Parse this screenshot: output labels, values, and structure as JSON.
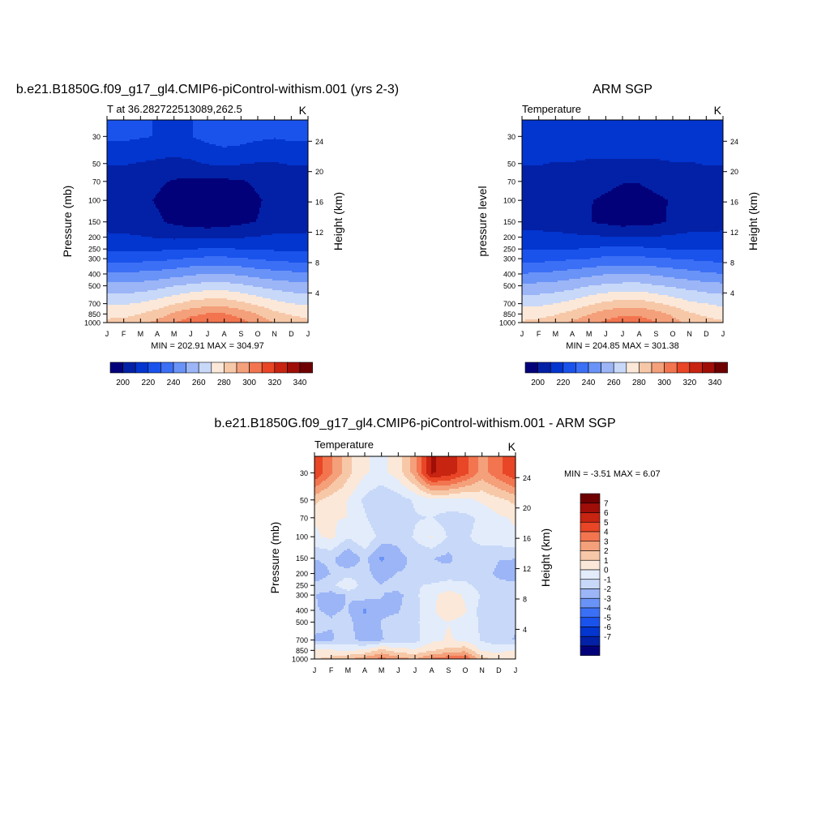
{
  "units_label": "K",
  "pressure_ticks": [
    30,
    50,
    70,
    100,
    150,
    200,
    250,
    300,
    400,
    500,
    700,
    850,
    1000
  ],
  "height_ticks": [
    4,
    8,
    12,
    16,
    20,
    24
  ],
  "months": [
    "J",
    "F",
    "M",
    "A",
    "M",
    "J",
    "J",
    "A",
    "S",
    "O",
    "N",
    "D",
    "J"
  ],
  "temp_colorbar": {
    "colors": [
      "#03017a",
      "#0321a6",
      "#0335cf",
      "#1a52ec",
      "#3b6ff5",
      "#6a93f7",
      "#9bb5f7",
      "#c8d8f8",
      "#fbe8d8",
      "#f7c8a8",
      "#f4a07a",
      "#f27550",
      "#e84626",
      "#c82412",
      "#a00e08",
      "#6e0000"
    ],
    "labels": [
      "200",
      "220",
      "240",
      "260",
      "280",
      "300",
      "320",
      "340"
    ]
  },
  "diff_colorbar": {
    "colors": [
      "#03017a",
      "#0321a6",
      "#0335cf",
      "#1a52ec",
      "#3b6ff5",
      "#6a93f7",
      "#9bb5f7",
      "#c8d8f8",
      "#e2ecfb",
      "#fbe8d8",
      "#f7c8a8",
      "#f4a07a",
      "#f27550",
      "#e84626",
      "#c82412",
      "#a00e08",
      "#6e0000"
    ],
    "labels": [
      "7",
      "6",
      "5",
      "4",
      "3",
      "2",
      "1",
      "0",
      "-1",
      "-2",
      "-3",
      "-4",
      "-5",
      "-6",
      "-7"
    ]
  },
  "panels": {
    "model": {
      "title": "b.e21.B1850G.f09_g17_gl4.CMIP6-piControl-withism.001 (yrs 2-3)",
      "left_string": "T at 36.282722513089,262.5",
      "right_string": "K",
      "ylabel": "Pressure (mb)",
      "ylabel_right": "Height (km)",
      "minmax": "MIN = 202.91 MAX = 304.97"
    },
    "obs": {
      "title": "ARM SGP",
      "left_string": "Temperature",
      "right_string": "K",
      "ylabel": "pressure level",
      "ylabel_right": "Height (km)",
      "minmax": "MIN = 204.85 MAX = 301.38"
    },
    "diff": {
      "title": "b.e21.B1850G.f09_g17_gl4.CMIP6-piControl-withism.001 - ARM SGP",
      "left_string": "Temperature",
      "right_string": "K",
      "ylabel": "Pressure (mb)",
      "ylabel_right": "Height (km)",
      "minmax": "MIN =  -3.51 MAX =   6.07"
    }
  },
  "chart_data": [
    {
      "type": "heatmap",
      "title": "b.e21.B1850G.f09_g17_gl4.CMIP6-piControl-withism.001 (yrs 2-3)",
      "xlabel": "",
      "ylabel": "Pressure (mb)",
      "x": [
        "J",
        "F",
        "M",
        "A",
        "M",
        "J",
        "J",
        "A",
        "S",
        "O",
        "N",
        "D",
        "J"
      ],
      "pressure_levels": [
        30,
        50,
        70,
        100,
        150,
        200,
        250,
        300,
        400,
        500,
        700,
        850,
        1000
      ],
      "values_K": [
        [
          228,
          228,
          227,
          226,
          225,
          226,
          229,
          231,
          230,
          228,
          227,
          228,
          228
        ],
        [
          218,
          218,
          217,
          216,
          215,
          216,
          218,
          219,
          218,
          217,
          217,
          218,
          218
        ],
        [
          214,
          213,
          212,
          210,
          208,
          207,
          207,
          207,
          208,
          210,
          212,
          213,
          214
        ],
        [
          214,
          213,
          211,
          208,
          206,
          204,
          204,
          204,
          206,
          208,
          211,
          213,
          214
        ],
        [
          214,
          213,
          212,
          210,
          207,
          205,
          204,
          205,
          207,
          209,
          212,
          213,
          214
        ],
        [
          219,
          219,
          218,
          217,
          216,
          216,
          216,
          216,
          217,
          218,
          219,
          219,
          219
        ],
        [
          225,
          225,
          225,
          225,
          225,
          226,
          227,
          227,
          226,
          226,
          225,
          225,
          225
        ],
        [
          232,
          232,
          232,
          233,
          234,
          236,
          237,
          237,
          236,
          234,
          233,
          232,
          232
        ],
        [
          245,
          245,
          246,
          247,
          249,
          251,
          253,
          253,
          251,
          249,
          247,
          246,
          245
        ],
        [
          255,
          255,
          256,
          258,
          261,
          263,
          265,
          265,
          263,
          260,
          258,
          256,
          255
        ],
        [
          269,
          269,
          271,
          274,
          278,
          282,
          284,
          284,
          281,
          277,
          273,
          270,
          269
        ],
        [
          276,
          276,
          279,
          283,
          289,
          294,
          297,
          297,
          293,
          287,
          281,
          278,
          276
        ],
        [
          281,
          282,
          285,
          290,
          296,
          301,
          304,
          304,
          300,
          293,
          287,
          283,
          281
        ]
      ],
      "zlim": [
        200,
        340
      ]
    },
    {
      "type": "heatmap",
      "title": "ARM SGP",
      "xlabel": "",
      "ylabel": "pressure level",
      "x": [
        "J",
        "F",
        "M",
        "A",
        "M",
        "J",
        "J",
        "A",
        "S",
        "O",
        "N",
        "D",
        "J"
      ],
      "pressure_levels": [
        30,
        50,
        70,
        100,
        150,
        200,
        250,
        300,
        400,
        500,
        700,
        850,
        1000
      ],
      "values_K": [
        [
          225,
          225,
          225,
          225,
          225,
          225,
          225,
          225,
          225,
          225,
          225,
          225,
          225
        ],
        [
          218,
          218,
          217,
          217,
          216,
          216,
          216,
          216,
          216,
          217,
          217,
          218,
          218
        ],
        [
          211,
          213,
          213,
          212,
          211,
          210,
          209,
          209,
          210,
          211,
          212,
          213,
          211
        ],
        [
          211,
          212,
          212,
          211,
          209,
          208,
          207,
          207,
          208,
          209,
          211,
          212,
          211
        ],
        [
          214,
          214,
          213,
          212,
          209,
          207,
          205,
          206,
          207,
          210,
          212,
          213,
          214
        ],
        [
          220,
          220,
          220,
          219,
          219,
          218,
          218,
          218,
          218,
          219,
          220,
          220,
          220
        ],
        [
          226,
          226,
          226,
          226,
          227,
          228,
          228,
          228,
          227,
          226,
          226,
          226,
          226
        ],
        [
          232,
          232,
          233,
          234,
          235,
          237,
          237,
          237,
          236,
          235,
          234,
          233,
          232
        ],
        [
          244,
          245,
          246,
          248,
          250,
          252,
          253,
          253,
          251,
          249,
          247,
          245,
          244
        ],
        [
          255,
          255,
          256,
          258,
          261,
          263,
          264,
          264,
          262,
          260,
          258,
          256,
          255
        ],
        [
          268,
          268,
          270,
          273,
          277,
          281,
          283,
          283,
          280,
          276,
          272,
          270,
          268
        ],
        [
          275,
          276,
          278,
          282,
          287,
          292,
          295,
          295,
          291,
          286,
          280,
          277,
          275
        ],
        [
          280,
          281,
          284,
          289,
          294,
          298,
          301,
          301,
          297,
          291,
          285,
          282,
          280
        ]
      ],
      "zlim": [
        200,
        340
      ]
    },
    {
      "type": "heatmap",
      "title": "b.e21.B1850G.f09_g17_gl4.CMIP6-piControl-withism.001 - ARM SGP",
      "xlabel": "",
      "ylabel": "Pressure (mb)",
      "x": [
        "J",
        "F",
        "M",
        "A",
        "M",
        "J",
        "J",
        "A",
        "S",
        "O",
        "N",
        "D",
        "J"
      ],
      "pressure_levels": [
        30,
        50,
        70,
        100,
        150,
        200,
        250,
        300,
        400,
        500,
        700,
        850,
        1000
      ],
      "values_K": [
        [
          4.5,
          3.0,
          1.5,
          0.5,
          0.2,
          0.8,
          2.5,
          5.5,
          5.0,
          4.0,
          2.5,
          3.5,
          4.5
        ],
        [
          1.5,
          0.8,
          0.4,
          -0.6,
          -1.2,
          -0.8,
          -0.3,
          0.2,
          0.3,
          0.1,
          0.6,
          1.0,
          1.5
        ],
        [
          0.5,
          0.5,
          0.4,
          -0.3,
          -1.2,
          -1.0,
          -0.5,
          -0.4,
          -0.8,
          -0.6,
          -0.3,
          0.3,
          0.5
        ],
        [
          0.3,
          0.6,
          -0.3,
          0.4,
          -0.8,
          -1.0,
          -0.3,
          0.5,
          -0.5,
          -0.5,
          -0.2,
          0.2,
          0.3
        ],
        [
          -1.2,
          -1.0,
          -2.0,
          -1.0,
          -2.2,
          -1.5,
          -1.0,
          -1.2,
          -1.5,
          -0.6,
          -0.7,
          -1.2,
          -1.2
        ],
        [
          -1.8,
          -1.2,
          -0.8,
          -1.0,
          -1.6,
          -1.2,
          -1.2,
          -1.0,
          -0.8,
          -0.8,
          -1.0,
          -1.4,
          -1.8
        ],
        [
          -1.0,
          -0.8,
          0.5,
          -1.0,
          -1.2,
          -0.8,
          -0.5,
          -0.3,
          -0.1,
          -0.2,
          -0.8,
          -1.0,
          -1.0
        ],
        [
          -1.2,
          -1.5,
          -1.2,
          -0.8,
          -1.2,
          -1.5,
          -0.6,
          0.2,
          0.8,
          0.3,
          -0.5,
          -1.0,
          -1.2
        ],
        [
          -1.2,
          -1.3,
          -1.2,
          -2.2,
          -1.4,
          -1.3,
          -0.7,
          0.3,
          0.8,
          0.5,
          -0.8,
          -1.2,
          -1.2
        ],
        [
          -1.1,
          -1.2,
          -1.0,
          -1.8,
          -1.2,
          -1.0,
          -0.6,
          0.2,
          0.4,
          0.2,
          -0.6,
          -1.1,
          -1.1
        ],
        [
          -1.3,
          -1.3,
          -1.0,
          -1.5,
          -1.3,
          -0.8,
          -0.7,
          0.2,
          0.5,
          0.2,
          -0.5,
          -1.0,
          -1.3
        ],
        [
          0.5,
          0.5,
          0.3,
          0.6,
          1.5,
          0.8,
          0.6,
          1.2,
          1.5,
          1.8,
          0.3,
          0.2,
          0.5
        ],
        [
          1.2,
          1.5,
          2.0,
          2.5,
          3.2,
          2.5,
          2.0,
          3.0,
          3.5,
          3.8,
          1.5,
          1.0,
          1.2
        ]
      ],
      "zlim": [
        -7,
        7
      ]
    }
  ]
}
